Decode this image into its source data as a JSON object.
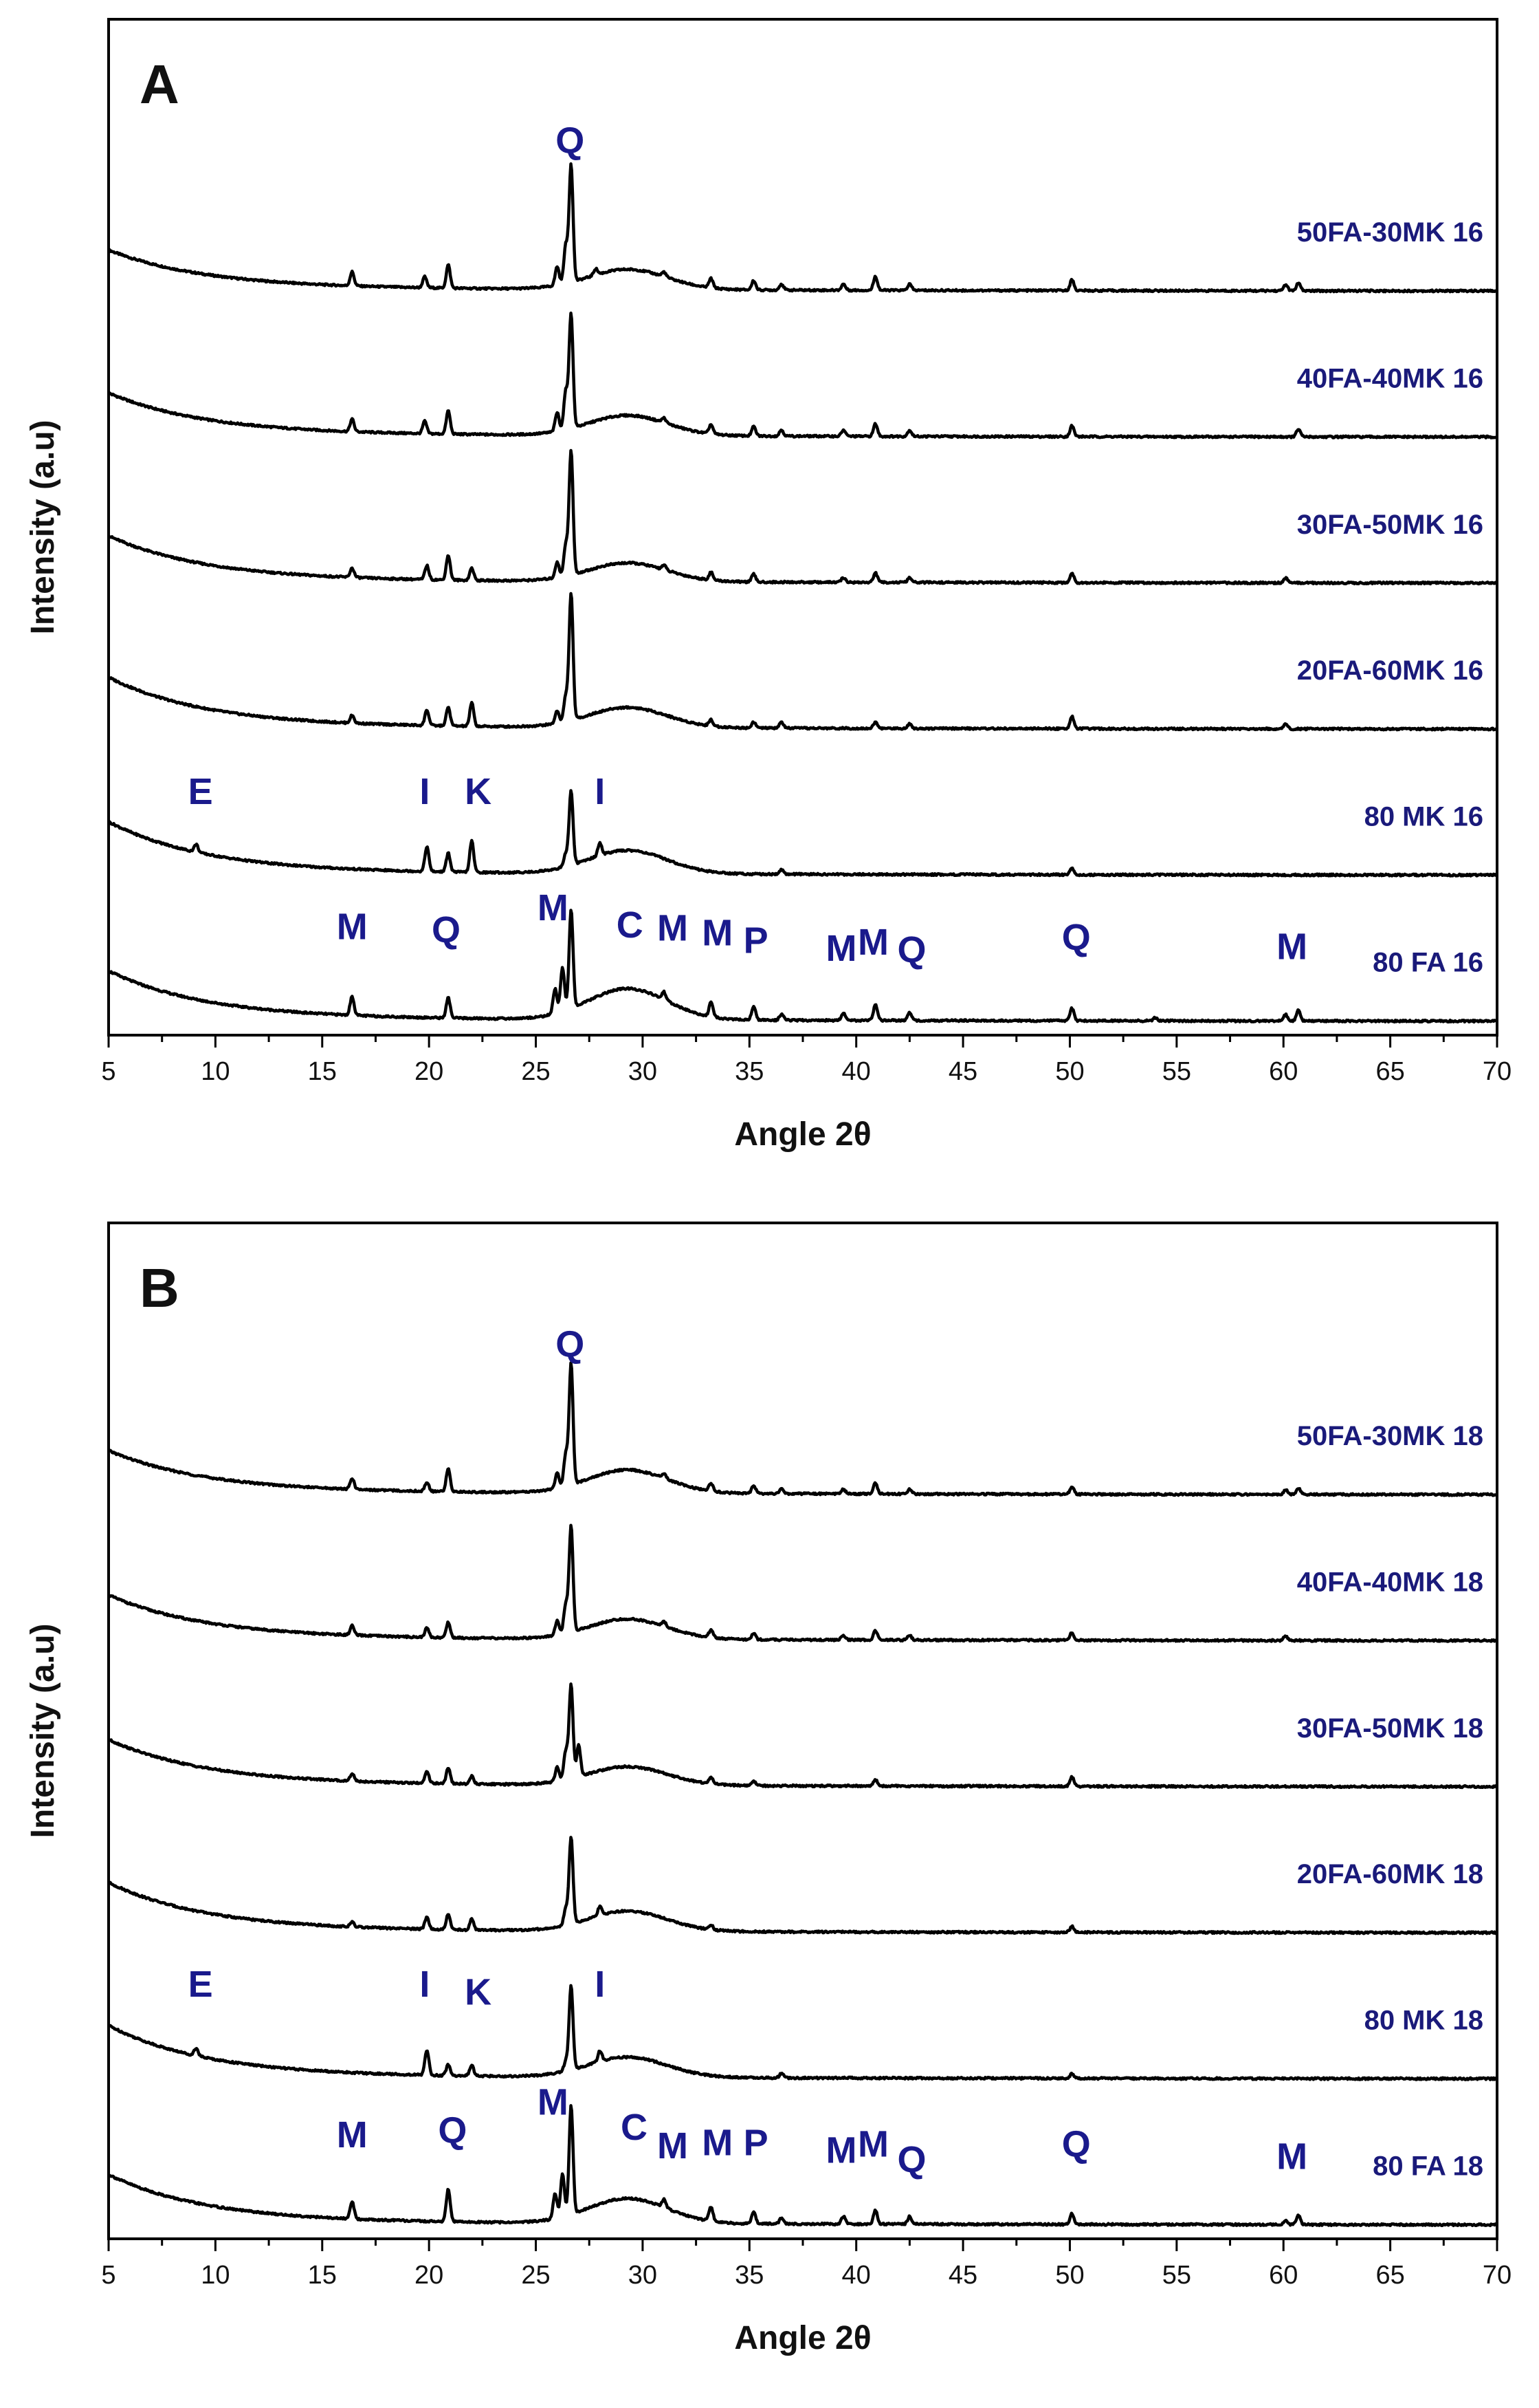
{
  "chart_data": [
    {
      "type": "line",
      "panel": "A",
      "title": "",
      "xlabel": "Angle 2θ",
      "ylabel": "Intensity (a.u)",
      "xlim": [
        5,
        70
      ],
      "xticks": [
        5,
        10,
        15,
        20,
        25,
        30,
        35,
        40,
        45,
        50,
        55,
        60,
        65,
        70
      ],
      "series": [
        {
          "name": "50FA-30MK 16",
          "offset": 5,
          "decay": 2.4,
          "hump": 1.3,
          "peaks": [
            [
              16.4,
              0.9
            ],
            [
              19.8,
              0.7
            ],
            [
              20.9,
              1.5
            ],
            [
              26.0,
              1.2
            ],
            [
              26.4,
              2.4
            ],
            [
              26.65,
              7.6
            ],
            [
              27.8,
              0.4
            ],
            [
              31.0,
              0.3
            ],
            [
              33.2,
              0.6
            ],
            [
              35.2,
              0.6
            ],
            [
              36.5,
              0.4
            ],
            [
              39.4,
              0.4
            ],
            [
              40.9,
              0.9
            ],
            [
              42.5,
              0.4
            ],
            [
              50.1,
              0.7
            ],
            [
              60.1,
              0.4
            ],
            [
              60.7,
              0.5
            ]
          ]
        },
        {
          "name": "40FA-40MK 16",
          "offset": 4,
          "decay": 2.6,
          "hump": 1.3,
          "peaks": [
            [
              16.4,
              0.8
            ],
            [
              19.8,
              0.8
            ],
            [
              20.9,
              1.5
            ],
            [
              26.0,
              1.2
            ],
            [
              26.4,
              2.4
            ],
            [
              26.65,
              7.4
            ],
            [
              31.0,
              0.3
            ],
            [
              33.2,
              0.6
            ],
            [
              35.2,
              0.6
            ],
            [
              36.5,
              0.4
            ],
            [
              39.4,
              0.4
            ],
            [
              40.9,
              0.8
            ],
            [
              42.5,
              0.4
            ],
            [
              50.1,
              0.7
            ],
            [
              60.7,
              0.5
            ]
          ]
        },
        {
          "name": "30FA-50MK 16",
          "offset": 3,
          "decay": 2.8,
          "hump": 1.2,
          "peaks": [
            [
              16.4,
              0.6
            ],
            [
              19.9,
              0.9
            ],
            [
              20.9,
              1.6
            ],
            [
              22.0,
              0.8
            ],
            [
              26.0,
              1.0
            ],
            [
              26.4,
              2.0
            ],
            [
              26.65,
              8.0
            ],
            [
              31.0,
              0.3
            ],
            [
              33.2,
              0.5
            ],
            [
              35.2,
              0.5
            ],
            [
              39.4,
              0.3
            ],
            [
              40.9,
              0.6
            ],
            [
              42.5,
              0.3
            ],
            [
              50.1,
              0.6
            ],
            [
              60.1,
              0.3
            ]
          ]
        },
        {
          "name": "20FA-60MK 16",
          "offset": 2,
          "decay": 3.1,
          "hump": 1.3,
          "peaks": [
            [
              16.4,
              0.5
            ],
            [
              19.9,
              1.0
            ],
            [
              20.9,
              1.2
            ],
            [
              22.0,
              1.5
            ],
            [
              26.0,
              0.8
            ],
            [
              26.4,
              1.6
            ],
            [
              26.65,
              8.2
            ],
            [
              33.2,
              0.4
            ],
            [
              35.2,
              0.4
            ],
            [
              36.5,
              0.4
            ],
            [
              40.9,
              0.4
            ],
            [
              42.5,
              0.3
            ],
            [
              50.1,
              0.8
            ],
            [
              60.1,
              0.3
            ]
          ]
        },
        {
          "name": "80 MK 16",
          "offset": 1,
          "decay": 3.2,
          "hump": 1.5,
          "peaks": [
            [
              9.1,
              0.5
            ],
            [
              19.9,
              1.6
            ],
            [
              20.9,
              1.2
            ],
            [
              22.0,
              2.0
            ],
            [
              26.4,
              0.8
            ],
            [
              26.65,
              4.8
            ],
            [
              28.0,
              0.8
            ],
            [
              36.5,
              0.3
            ],
            [
              50.1,
              0.4
            ]
          ]
        },
        {
          "name": "80 FA 16",
          "offset": 0,
          "decay": 3.0,
          "hump": 2.0,
          "peaks": [
            [
              16.4,
              1.2
            ],
            [
              20.9,
              1.3
            ],
            [
              25.9,
              1.6
            ],
            [
              26.25,
              2.8
            ],
            [
              26.65,
              6.4
            ],
            [
              31.0,
              0.5
            ],
            [
              33.2,
              0.9
            ],
            [
              35.2,
              0.9
            ],
            [
              36.5,
              0.4
            ],
            [
              39.4,
              0.5
            ],
            [
              40.9,
              1.0
            ],
            [
              42.5,
              0.5
            ],
            [
              50.1,
              0.8
            ],
            [
              54.0,
              0.2
            ],
            [
              60.1,
              0.4
            ],
            [
              60.7,
              0.7
            ]
          ]
        }
      ],
      "series_labels": [
        "50FA-30MK 16",
        "40FA-40MK 16",
        "30FA-50MK 16",
        "20FA-60MK 16",
        "80 MK 16",
        "80 FA 16"
      ],
      "peak_annotations": [
        {
          "text": "Q",
          "x": 26.6,
          "series": "50FA-30MK 16",
          "level": 8.9
        },
        {
          "text": "E",
          "x": 9.3,
          "series": "80 MK 16",
          "level": 4.6
        },
        {
          "text": "I",
          "x": 19.8,
          "series": "80 MK 16",
          "level": 4.6
        },
        {
          "text": "K",
          "x": 22.3,
          "series": "80 MK 16",
          "level": 4.6
        },
        {
          "text": "I",
          "x": 28.0,
          "series": "80 MK 16",
          "level": 4.6
        },
        {
          "text": "M",
          "x": 16.4,
          "series": "80 FA 16",
          "level": 5.3
        },
        {
          "text": "Q",
          "x": 20.8,
          "series": "80 FA 16",
          "level": 5.1
        },
        {
          "text": "M",
          "x": 25.8,
          "series": "80 FA 16",
          "level": 6.5
        },
        {
          "text": "C",
          "x": 29.4,
          "series": "80 FA 16",
          "level": 5.4
        },
        {
          "text": "M",
          "x": 31.4,
          "series": "80 FA 16",
          "level": 5.2
        },
        {
          "text": "M",
          "x": 33.5,
          "series": "80 FA 16",
          "level": 4.9
        },
        {
          "text": "P",
          "x": 35.3,
          "series": "80 FA 16",
          "level": 4.4
        },
        {
          "text": "M",
          "x": 39.3,
          "series": "80 FA 16",
          "level": 3.9
        },
        {
          "text": "M",
          "x": 40.8,
          "series": "80 FA 16",
          "level": 4.3
        },
        {
          "text": "Q",
          "x": 42.6,
          "series": "80 FA 16",
          "level": 3.8
        },
        {
          "text": "Q",
          "x": 50.3,
          "series": "80 FA 16",
          "level": 4.6
        },
        {
          "text": "M",
          "x": 60.4,
          "series": "80 FA 16",
          "level": 4.0
        }
      ]
    },
    {
      "type": "line",
      "panel": "B",
      "title": "",
      "xlabel": "Angle 2θ",
      "ylabel": "Intensity (a.u)",
      "xlim": [
        5,
        70
      ],
      "xticks": [
        5,
        10,
        15,
        20,
        25,
        30,
        35,
        40,
        45,
        50,
        55,
        60,
        65,
        70
      ],
      "series": [
        {
          "name": "50FA-30MK 18",
          "offset": 5,
          "decay": 2.6,
          "hump": 1.5,
          "peaks": [
            [
              16.4,
              0.7
            ],
            [
              19.9,
              0.6
            ],
            [
              20.9,
              1.5
            ],
            [
              26.0,
              1.0
            ],
            [
              26.4,
              2.0
            ],
            [
              26.65,
              7.8
            ],
            [
              31.0,
              0.3
            ],
            [
              33.2,
              0.5
            ],
            [
              35.2,
              0.5
            ],
            [
              36.5,
              0.3
            ],
            [
              39.4,
              0.3
            ],
            [
              40.9,
              0.7
            ],
            [
              42.5,
              0.3
            ],
            [
              50.1,
              0.5
            ],
            [
              60.1,
              0.3
            ],
            [
              60.7,
              0.4
            ]
          ]
        },
        {
          "name": "40FA-40MK 18",
          "offset": 4,
          "decay": 2.7,
          "hump": 1.3,
          "peaks": [
            [
              16.4,
              0.6
            ],
            [
              19.9,
              0.6
            ],
            [
              20.9,
              1.0
            ],
            [
              26.0,
              0.9
            ],
            [
              26.4,
              1.8
            ],
            [
              26.65,
              6.8
            ],
            [
              31.0,
              0.3
            ],
            [
              33.2,
              0.5
            ],
            [
              35.2,
              0.4
            ],
            [
              39.4,
              0.3
            ],
            [
              40.9,
              0.6
            ],
            [
              42.5,
              0.3
            ],
            [
              50.1,
              0.5
            ],
            [
              60.1,
              0.3
            ]
          ]
        },
        {
          "name": "30FA-50MK 18",
          "offset": 3,
          "decay": 2.8,
          "hump": 1.2,
          "peaks": [
            [
              16.4,
              0.5
            ],
            [
              19.9,
              0.8
            ],
            [
              20.9,
              1.0
            ],
            [
              22.0,
              0.5
            ],
            [
              26.0,
              0.9
            ],
            [
              26.4,
              1.8
            ],
            [
              26.65,
              6.0
            ],
            [
              27.0,
              2.0
            ],
            [
              33.2,
              0.4
            ],
            [
              35.2,
              0.3
            ],
            [
              40.9,
              0.4
            ],
            [
              50.1,
              0.6
            ]
          ]
        },
        {
          "name": "20FA-60MK 18",
          "offset": 2,
          "decay": 3.0,
          "hump": 1.3,
          "peaks": [
            [
              16.4,
              0.3
            ],
            [
              19.9,
              0.8
            ],
            [
              20.9,
              1.0
            ],
            [
              22.0,
              0.7
            ],
            [
              26.4,
              1.0
            ],
            [
              26.65,
              5.6
            ],
            [
              28.0,
              0.6
            ],
            [
              33.2,
              0.3
            ],
            [
              50.1,
              0.4
            ]
          ]
        },
        {
          "name": "80 MK 18",
          "offset": 1,
          "decay": 3.2,
          "hump": 1.3,
          "peaks": [
            [
              9.1,
              0.5
            ],
            [
              19.9,
              1.6
            ],
            [
              20.9,
              0.7
            ],
            [
              22.0,
              0.7
            ],
            [
              26.4,
              0.6
            ],
            [
              26.65,
              5.4
            ],
            [
              28.0,
              0.7
            ],
            [
              36.5,
              0.3
            ],
            [
              50.1,
              0.3
            ]
          ]
        },
        {
          "name": "80 FA 18",
          "offset": 0,
          "decay": 3.0,
          "hump": 1.6,
          "peaks": [
            [
              16.4,
              1.1
            ],
            [
              20.9,
              2.1
            ],
            [
              25.9,
              1.6
            ],
            [
              26.25,
              2.8
            ],
            [
              26.65,
              7.0
            ],
            [
              31.0,
              0.5
            ],
            [
              33.2,
              0.9
            ],
            [
              35.2,
              0.8
            ],
            [
              36.5,
              0.4
            ],
            [
              39.4,
              0.5
            ],
            [
              40.9,
              0.9
            ],
            [
              42.5,
              0.5
            ],
            [
              50.1,
              0.7
            ],
            [
              60.1,
              0.3
            ],
            [
              60.7,
              0.6
            ]
          ]
        }
      ],
      "series_labels": [
        "50FA-30MK 18",
        "40FA-40MK 18",
        "30FA-50MK 18",
        "20FA-60MK 18",
        "80 MK 18",
        "80 FA 18"
      ],
      "peak_annotations": [
        {
          "text": "Q",
          "x": 26.6,
          "series": "50FA-30MK 18",
          "level": 8.9
        },
        {
          "text": "E",
          "x": 9.3,
          "series": "80 MK 18",
          "level": 5.3
        },
        {
          "text": "I",
          "x": 19.8,
          "series": "80 MK 18",
          "level": 5.3
        },
        {
          "text": "K",
          "x": 22.3,
          "series": "80 MK 18",
          "level": 4.8
        },
        {
          "text": "I",
          "x": 28.0,
          "series": "80 MK 18",
          "level": 5.3
        },
        {
          "text": "M",
          "x": 16.4,
          "series": "80 FA 18",
          "level": 5.0
        },
        {
          "text": "Q",
          "x": 21.1,
          "series": "80 FA 18",
          "level": 5.3
        },
        {
          "text": "M",
          "x": 25.8,
          "series": "80 FA 18",
          "level": 7.1
        },
        {
          "text": "C",
          "x": 29.6,
          "series": "80 FA 18",
          "level": 5.5
        },
        {
          "text": "M",
          "x": 31.4,
          "series": "80 FA 18",
          "level": 4.3
        },
        {
          "text": "M",
          "x": 33.5,
          "series": "80 FA 18",
          "level": 4.5
        },
        {
          "text": "P",
          "x": 35.3,
          "series": "80 FA 18",
          "level": 4.5
        },
        {
          "text": "M",
          "x": 39.3,
          "series": "80 FA 18",
          "level": 4.0
        },
        {
          "text": "M",
          "x": 40.8,
          "series": "80 FA 18",
          "level": 4.4
        },
        {
          "text": "Q",
          "x": 42.6,
          "series": "80 FA 18",
          "level": 3.4
        },
        {
          "text": "Q",
          "x": 50.3,
          "series": "80 FA 18",
          "level": 4.4
        },
        {
          "text": "M",
          "x": 60.4,
          "series": "80 FA 18",
          "level": 3.6
        }
      ]
    }
  ]
}
